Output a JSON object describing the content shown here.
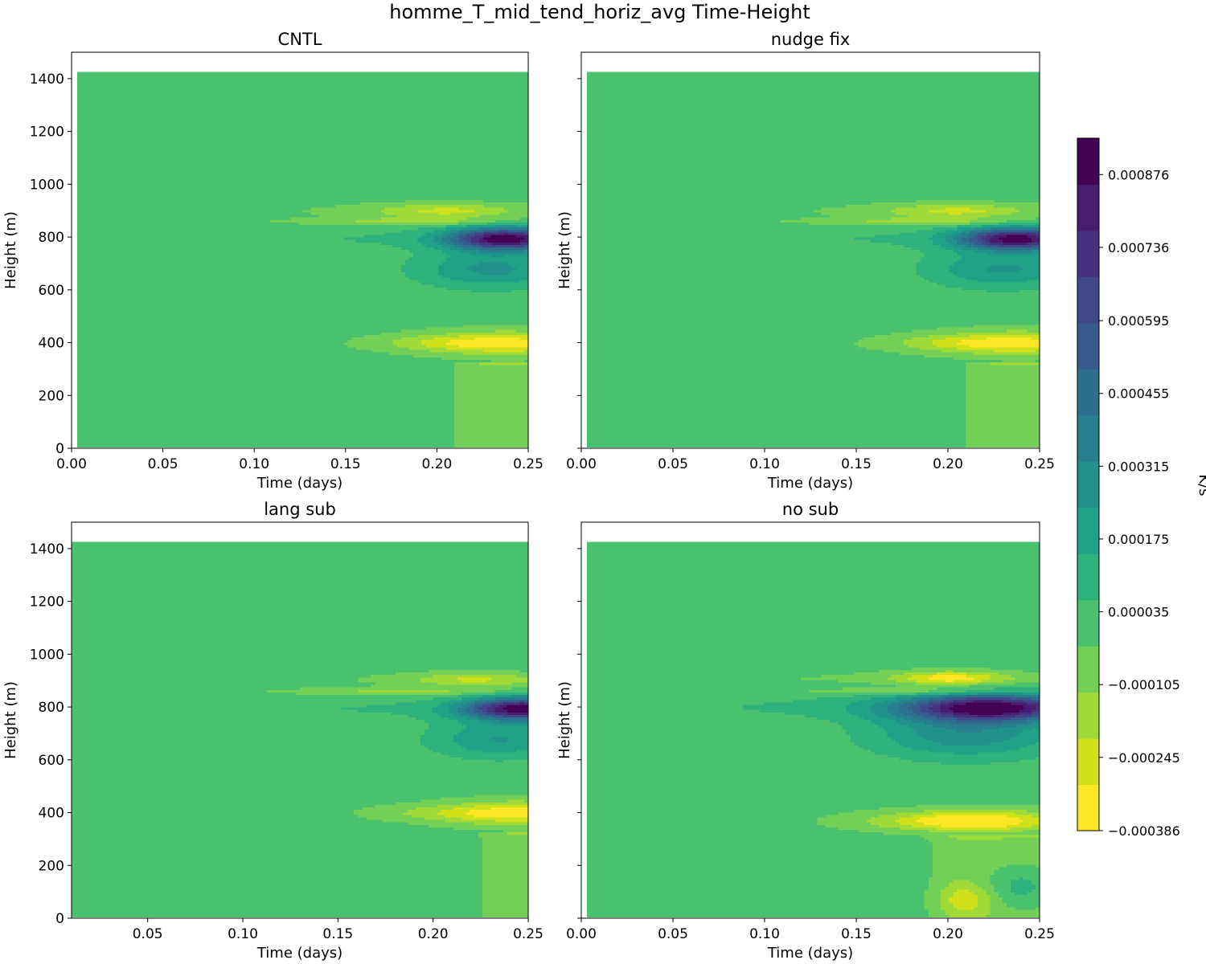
{
  "figure": {
    "title": "homme_T_mid_tend_horiz_avg Time-Height"
  },
  "colorbar": {
    "label": "K/s",
    "tick_labels": [
      "0.000876",
      "0.000736",
      "0.000595",
      "0.000455",
      "0.000315",
      "0.000175",
      "0.000035",
      "−0.000105",
      "−0.000245",
      "−0.000386"
    ],
    "tick_values": [
      0.000876,
      0.000736,
      0.000595,
      0.000455,
      0.000315,
      0.000175,
      3.5e-05,
      -0.000105,
      -0.000245,
      -0.000386
    ],
    "range": [
      -0.000386,
      0.000946
    ],
    "levels": 19,
    "colors": [
      "#fde725",
      "#d0e11c",
      "#a0da39",
      "#73d056",
      "#4ac16d",
      "#2db27d",
      "#1fa187",
      "#21918c",
      "#277f8e",
      "#2e6e8e",
      "#365c8d",
      "#3f4788",
      "#46327e",
      "#481d6f",
      "#440154"
    ]
  },
  "chart_data": [
    {
      "type": "heatmap",
      "title": "CNTL",
      "xlabel": "Time (days)",
      "ylabel": "Height (m)",
      "xlim": [
        0.0,
        0.25
      ],
      "ylim": [
        0,
        1500
      ],
      "x_ticks": [
        "0.00",
        "0.05",
        "0.10",
        "0.15",
        "0.20",
        "0.25"
      ],
      "x_tick_values": [
        0.0,
        0.05,
        0.1,
        0.15,
        0.2,
        0.25
      ],
      "y_ticks": [
        "0",
        "200",
        "400",
        "600",
        "800",
        "1000",
        "1200",
        "1400"
      ],
      "y_tick_values": [
        0,
        200,
        400,
        600,
        800,
        1000,
        1200,
        1400
      ],
      "data_x_range": [
        0.003,
        0.25
      ],
      "data_y_range": [
        5,
        1425
      ],
      "background_value": 0.0,
      "features": [
        {
          "kind": "band",
          "y": 795,
          "thickness": 42,
          "t_start": 0.0,
          "t_ramp": 0.25,
          "peak_time": 0.235,
          "spread": 0.03,
          "amp": 0.00092,
          "base": 8e-05
        },
        {
          "kind": "band",
          "y": 900,
          "thickness": 28,
          "t_start": 0.02,
          "t_ramp": 0.22,
          "peak_time": 0.2,
          "spread": 0.04,
          "amp": -0.00022,
          "base": -4e-05
        },
        {
          "kind": "band",
          "y": 860,
          "thickness": 14,
          "t_start": 0.0,
          "t_ramp": 0.2,
          "peak_time": 0.18,
          "spread": 0.05,
          "amp": -0.00015,
          "base": -3e-05
        },
        {
          "kind": "blob",
          "x": 0.23,
          "y": 680,
          "sx": 0.04,
          "sy": 70,
          "amp": 0.00026
        },
        {
          "kind": "blob",
          "x": 0.24,
          "y": 400,
          "sx": 0.045,
          "sy": 45,
          "amp": -0.00032
        },
        {
          "kind": "blob",
          "x": 0.2,
          "y": 400,
          "sx": 0.04,
          "sy": 30,
          "amp": -0.00012
        },
        {
          "kind": "column",
          "x_start": 0.205,
          "y_top": 330,
          "amp": -0.00011
        }
      ]
    },
    {
      "type": "heatmap",
      "title": "nudge fix",
      "xlabel": "Time (days)",
      "ylabel": "Height (m)",
      "xlim": [
        0.0,
        0.25
      ],
      "ylim": [
        0,
        1500
      ],
      "x_ticks": [
        "0.00",
        "0.05",
        "0.10",
        "0.15",
        "0.20",
        "0.25"
      ],
      "x_tick_values": [
        0.0,
        0.05,
        0.1,
        0.15,
        0.2,
        0.25
      ],
      "y_ticks": [
        "0",
        "200",
        "400",
        "600",
        "800",
        "1000",
        "1200",
        "1400"
      ],
      "y_tick_values": [
        0,
        200,
        400,
        600,
        800,
        1000,
        1200,
        1400
      ],
      "show_y_tick_labels": false,
      "data_x_range": [
        0.003,
        0.25
      ],
      "data_y_range": [
        5,
        1425
      ],
      "background_value": 0.0,
      "features": [
        {
          "kind": "band",
          "y": 795,
          "thickness": 42,
          "t_start": 0.0,
          "t_ramp": 0.25,
          "peak_time": 0.235,
          "spread": 0.03,
          "amp": 0.0009,
          "base": 8e-05
        },
        {
          "kind": "band",
          "y": 900,
          "thickness": 28,
          "t_start": 0.02,
          "t_ramp": 0.22,
          "peak_time": 0.2,
          "spread": 0.04,
          "amp": -0.00022,
          "base": -4e-05
        },
        {
          "kind": "band",
          "y": 860,
          "thickness": 14,
          "t_start": 0.0,
          "t_ramp": 0.2,
          "peak_time": 0.18,
          "spread": 0.05,
          "amp": -0.00015,
          "base": -3e-05
        },
        {
          "kind": "blob",
          "x": 0.23,
          "y": 680,
          "sx": 0.04,
          "sy": 70,
          "amp": 0.00025
        },
        {
          "kind": "blob",
          "x": 0.24,
          "y": 400,
          "sx": 0.045,
          "sy": 45,
          "amp": -0.00032
        },
        {
          "kind": "blob",
          "x": 0.2,
          "y": 400,
          "sx": 0.04,
          "sy": 30,
          "amp": -0.00012
        },
        {
          "kind": "column",
          "x_start": 0.205,
          "y_top": 330,
          "amp": -0.00011
        }
      ]
    },
    {
      "type": "heatmap",
      "title": "lang sub",
      "xlabel": "Time (days)",
      "ylabel": "Height (m)",
      "xlim": [
        0.01,
        0.25
      ],
      "ylim": [
        0,
        1500
      ],
      "x_ticks": [
        "0.05",
        "0.10",
        "0.15",
        "0.20",
        "0.25"
      ],
      "x_tick_values": [
        0.05,
        0.1,
        0.15,
        0.2,
        0.25
      ],
      "y_ticks": [
        "0",
        "200",
        "400",
        "600",
        "800",
        "1000",
        "1200",
        "1400"
      ],
      "y_tick_values": [
        0,
        200,
        400,
        600,
        800,
        1000,
        1200,
        1400
      ],
      "data_x_range": [
        0.01,
        0.25
      ],
      "data_y_range": [
        5,
        1425
      ],
      "background_value": 0.0,
      "features": [
        {
          "kind": "band",
          "y": 795,
          "thickness": 42,
          "t_start": 0.0,
          "t_ramp": 0.25,
          "peak_time": 0.245,
          "spread": 0.03,
          "amp": 0.00088,
          "base": 8e-05
        },
        {
          "kind": "band",
          "y": 905,
          "thickness": 26,
          "t_start": 0.02,
          "t_ramp": 0.22,
          "peak_time": 0.22,
          "spread": 0.035,
          "amp": -0.0002,
          "base": -3e-05
        },
        {
          "kind": "band",
          "y": 860,
          "thickness": 14,
          "t_start": 0.0,
          "t_ramp": 0.2,
          "peak_time": 0.18,
          "spread": 0.05,
          "amp": -0.00014,
          "base": -3e-05
        },
        {
          "kind": "blob",
          "x": 0.235,
          "y": 680,
          "sx": 0.035,
          "sy": 70,
          "amp": 0.00024
        },
        {
          "kind": "blob",
          "x": 0.245,
          "y": 400,
          "sx": 0.04,
          "sy": 45,
          "amp": -0.00032
        },
        {
          "kind": "blob",
          "x": 0.205,
          "y": 400,
          "sx": 0.04,
          "sy": 30,
          "amp": -0.00011
        },
        {
          "kind": "column",
          "x_start": 0.22,
          "y_top": 330,
          "amp": -0.00011
        }
      ]
    },
    {
      "type": "heatmap",
      "title": "no sub",
      "xlabel": "Time (days)",
      "ylabel": "Height (m)",
      "xlim": [
        0.0,
        0.25
      ],
      "ylim": [
        0,
        1500
      ],
      "x_ticks": [
        "0.00",
        "0.05",
        "0.10",
        "0.15",
        "0.20",
        "0.25"
      ],
      "x_tick_values": [
        0.0,
        0.05,
        0.1,
        0.15,
        0.2,
        0.25
      ],
      "y_ticks": [
        "0",
        "200",
        "400",
        "600",
        "800",
        "1000",
        "1200",
        "1400"
      ],
      "y_tick_values": [
        0,
        200,
        400,
        600,
        800,
        1000,
        1200,
        1400
      ],
      "show_y_tick_labels": false,
      "data_x_range": [
        0.003,
        0.25
      ],
      "data_y_range": [
        5,
        1425
      ],
      "background_value": 0.0,
      "features": [
        {
          "kind": "band",
          "y": 800,
          "thickness": 50,
          "t_start": 0.0,
          "t_ramp": 0.22,
          "peak_time": 0.22,
          "spread": 0.05,
          "amp": 0.00085,
          "base": 0.0001
        },
        {
          "kind": "band",
          "y": 910,
          "thickness": 26,
          "t_start": 0.05,
          "t_ramp": 0.2,
          "peak_time": 0.2,
          "spread": 0.03,
          "amp": -0.00032,
          "base": -5e-05
        },
        {
          "kind": "band",
          "y": 860,
          "thickness": 14,
          "t_start": 0.0,
          "t_ramp": 0.2,
          "peak_time": 0.18,
          "spread": 0.05,
          "amp": -0.00015,
          "base": -3e-05
        },
        {
          "kind": "blob",
          "x": 0.21,
          "y": 700,
          "sx": 0.05,
          "sy": 90,
          "amp": 0.0003
        },
        {
          "kind": "blob",
          "x": 0.22,
          "y": 370,
          "sx": 0.04,
          "sy": 40,
          "amp": -0.00036
        },
        {
          "kind": "blob",
          "x": 0.185,
          "y": 370,
          "sx": 0.045,
          "sy": 35,
          "amp": -0.00014
        },
        {
          "kind": "blob",
          "x": 0.24,
          "y": 120,
          "sx": 0.02,
          "sy": 90,
          "amp": 0.00018
        },
        {
          "kind": "blob",
          "x": 0.21,
          "y": 70,
          "sx": 0.015,
          "sy": 60,
          "amp": -0.00018
        },
        {
          "kind": "column",
          "x_start": 0.185,
          "y_top": 320,
          "amp": -0.0001
        }
      ]
    }
  ]
}
